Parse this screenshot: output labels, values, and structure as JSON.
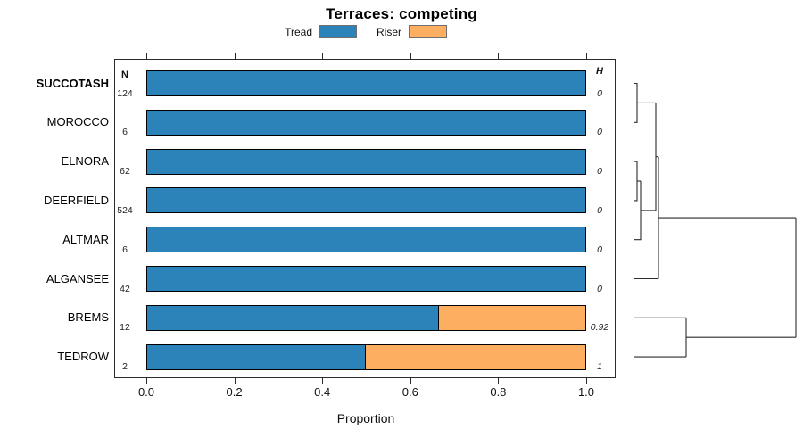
{
  "title": "Terraces: competing",
  "legend": {
    "items": [
      {
        "label": "Tread",
        "color": "#2B83BA"
      },
      {
        "label": "Riser",
        "color": "#FDAE61"
      }
    ]
  },
  "columns": {
    "n_header": "N",
    "h_header": "H"
  },
  "x_axis": {
    "label": "Proportion",
    "tick_labels": [
      "0.0",
      "0.2",
      "0.4",
      "0.6",
      "0.8",
      "1.0"
    ]
  },
  "chart_data": {
    "type": "bar",
    "orientation": "horizontal-stacked",
    "title": "Terraces: competing",
    "xlabel": "Proportion",
    "xlim": [
      0,
      1
    ],
    "grid": false,
    "legend_position": "top",
    "categories": [
      "SUCCOTASH",
      "MOROCCO",
      "ELNORA",
      "DEERFIELD",
      "ALTMAR",
      "ALGANSEE",
      "BREMS",
      "TEDROW"
    ],
    "bold_category": "SUCCOTASH",
    "series": [
      {
        "name": "Tread",
        "color": "#2B83BA",
        "values": [
          1,
          1,
          1,
          1,
          1,
          1,
          0.667,
          0.5
        ]
      },
      {
        "name": "Riser",
        "color": "#FDAE61",
        "values": [
          0,
          0,
          0,
          0,
          0,
          0,
          0.333,
          0.5
        ]
      }
    ],
    "n": [
      124,
      6,
      62,
      524,
      6,
      42,
      12,
      2
    ],
    "h_display": [
      "0",
      "0",
      "0",
      "0",
      "0",
      "0",
      "0.92",
      "1"
    ],
    "dendrogram": {
      "description": "right-side divisive-cluster dendrogram; leaves ordered as categories",
      "joins": [
        {
          "members": [
            "SUCCOTASH",
            "MOROCCO"
          ],
          "relative_height": 0.02
        },
        {
          "members": [
            "ELNORA",
            "DEERFIELD"
          ],
          "relative_height": 0.02
        },
        {
          "members": [
            "ELNORA+DEERFIELD",
            "ALTMAR"
          ],
          "relative_height": 0.04
        },
        {
          "members": [
            "SUCCOTASH+MOROCCO",
            "ELNORA+DEERFIELD+ALTMAR"
          ],
          "relative_height": 0.13
        },
        {
          "members": [
            "above",
            "ALGANSEE"
          ],
          "relative_height": 0.15
        },
        {
          "members": [
            "BREMS",
            "TEDROW"
          ],
          "relative_height": 0.32
        },
        {
          "members": [
            "all-tread-cluster",
            "BREMS+TEDROW"
          ],
          "relative_height": 1.0
        }
      ],
      "segments": [
        [
          [
            711,
            93.5
          ],
          [
            714,
            93.5
          ],
          [
            714,
            137.3
          ],
          [
            711,
            137.3
          ]
        ],
        [
          [
            714,
            115.4
          ],
          [
            735,
            115.4
          ]
        ],
        [
          [
            711,
            181.1
          ],
          [
            714,
            181.1
          ],
          [
            714,
            224.9
          ],
          [
            711,
            224.9
          ]
        ],
        [
          [
            714,
            203
          ],
          [
            718,
            203
          ]
        ],
        [
          [
            718,
            203
          ],
          [
            718,
            268.7
          ],
          [
            711,
            268.7
          ]
        ],
        [
          [
            718,
            235.9
          ],
          [
            735,
            235.9
          ]
        ],
        [
          [
            735,
            115.4
          ],
          [
            735,
            235.9
          ]
        ],
        [
          [
            735,
            175.7
          ],
          [
            738,
            175.7
          ]
        ],
        [
          [
            738,
            175.7
          ],
          [
            738,
            312.5
          ]
        ],
        [
          [
            711,
            312.5
          ],
          [
            738,
            312.5
          ]
        ],
        [
          [
            738,
            244.1
          ],
          [
            892,
            244.1
          ]
        ],
        [
          [
            711,
            356.3
          ],
          [
            769,
            356.3
          ]
        ],
        [
          [
            711,
            400.1
          ],
          [
            769,
            400.1
          ]
        ],
        [
          [
            769,
            356.3
          ],
          [
            769,
            400.1
          ]
        ],
        [
          [
            769,
            378.2
          ],
          [
            892,
            378.2
          ]
        ],
        [
          [
            892,
            244.1
          ],
          [
            892,
            378.2
          ]
        ]
      ]
    }
  }
}
